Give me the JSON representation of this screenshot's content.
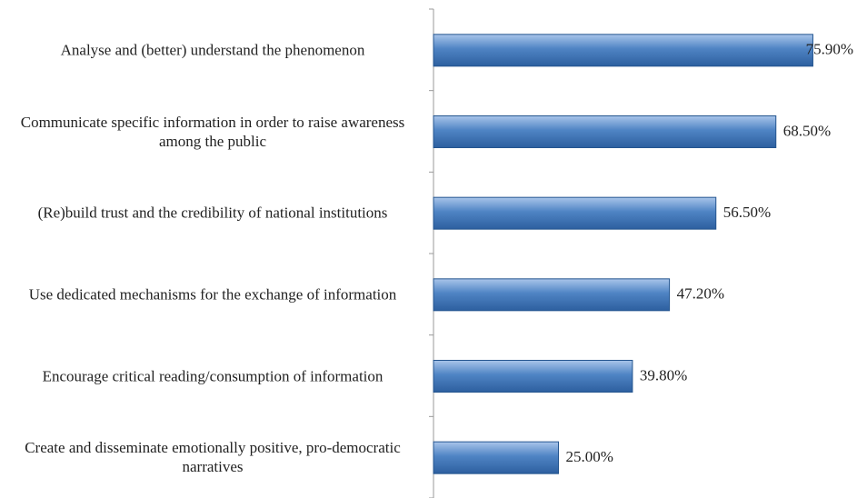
{
  "chart_data": {
    "type": "bar",
    "orientation": "horizontal",
    "categories": [
      "Analyse and (better) understand the phenomenon",
      "Communicate specific information in order to raise awareness among the public",
      "(Re)build trust and the credibility of national institutions",
      "Use dedicated mechanisms for the exchange of information",
      "Encourage critical reading/consumption of information",
      "Create and disseminate emotionally positive, pro-democratic narratives"
    ],
    "values": [
      75.9,
      68.5,
      56.5,
      47.2,
      39.8,
      25.0
    ],
    "value_labels": [
      "75.90%",
      "68.50%",
      "56.50%",
      "47.20%",
      "39.80%",
      "25.00%"
    ],
    "color": "#4a7ebb",
    "xlim": [
      0,
      80
    ]
  }
}
